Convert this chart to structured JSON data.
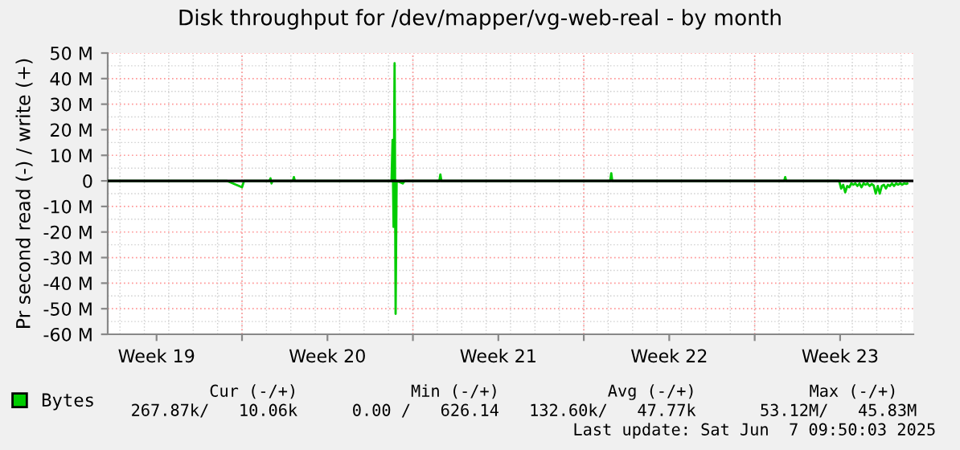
{
  "chart_data": {
    "type": "line",
    "title": "Disk throughput for /dev/mapper/vg-web-real - by month",
    "ylabel": "Pr second read (-) / write (+)",
    "x": [
      "2025-05-06T12:00",
      "2025-05-11T09:00",
      "2025-05-12T00:00",
      "2025-05-12T02:00",
      "2025-05-13T03:00",
      "2025-05-13T04:00",
      "2025-05-13T05:00",
      "2025-05-13T06:00",
      "2025-05-14T02:00",
      "2025-05-14T03:00",
      "2025-05-14T04:00",
      "2025-05-18T03:00",
      "2025-05-18T04:00",
      "2025-05-18T05:00",
      "2025-05-18T06:00",
      "2025-05-18T07:00",
      "2025-05-18T08:00",
      "2025-05-18T14:00",
      "2025-05-18T16:00",
      "2025-05-20T02:00",
      "2025-05-20T03:00",
      "2025-05-20T04:00",
      "2025-05-27T02:00",
      "2025-05-27T03:00",
      "2025-05-27T04:00",
      "2025-06-03T05:00",
      "2025-06-03T06:00",
      "2025-06-03T07:00",
      "2025-06-05T11:00",
      "2025-06-05T13:00",
      "2025-06-05T15:00",
      "2025-06-05T17:00",
      "2025-06-05T19:00",
      "2025-06-05T21:00",
      "2025-06-05T23:00",
      "2025-06-06T01:00",
      "2025-06-06T03:00",
      "2025-06-06T05:00",
      "2025-06-06T07:00",
      "2025-06-06T09:00",
      "2025-06-06T11:00",
      "2025-06-06T13:00",
      "2025-06-06T15:00",
      "2025-06-06T17:00",
      "2025-06-06T19:00",
      "2025-06-06T21:00",
      "2025-06-06T23:00",
      "2025-06-07T01:00",
      "2025-06-07T03:00",
      "2025-06-07T05:00",
      "2025-06-07T07:00",
      "2025-06-07T09:00",
      "2025-06-07T11:00",
      "2025-06-07T13:00",
      "2025-06-07T15:00",
      "2025-06-07T17:00",
      "2025-06-07T19:00",
      "2025-06-07T21:00",
      "2025-06-07T23:00",
      "2025-06-08T01:00",
      "2025-06-08T03:00",
      "2025-06-08T05:00",
      "2025-06-08T06:00"
    ],
    "series": [
      {
        "name": "Bytes",
        "color": "#00cc00",
        "values": [
          0,
          0,
          -2.5,
          0,
          0,
          1,
          -1,
          0,
          0,
          1.5,
          0,
          0,
          16,
          -18,
          46,
          -52,
          0,
          -1,
          0,
          0,
          2.5,
          0,
          0,
          3,
          0,
          0,
          1.5,
          0,
          0,
          -3,
          -1.5,
          -4.5,
          -2,
          -2.5,
          -1,
          -1.5,
          -1,
          -2,
          -1,
          -2.5,
          -1,
          -1.5,
          -1,
          -2,
          -1.2,
          -1.8,
          -5,
          -2,
          -5,
          -2,
          -1.5,
          -3,
          -1.5,
          -2,
          -1,
          -2,
          -1,
          -1.5,
          -1,
          -1.5,
          -1,
          -1.2,
          -1
        ]
      }
    ],
    "xlim": [
      "2025-05-06T12:00",
      "2025-06-08T12:00"
    ],
    "xticks": [
      {
        "value": "2025-05-08T12:00",
        "label": "Week 19"
      },
      {
        "value": "2025-05-12T00:00",
        "label": null
      },
      {
        "value": "2025-05-15T12:00",
        "label": "Week 20"
      },
      {
        "value": "2025-05-19T00:00",
        "label": null
      },
      {
        "value": "2025-05-22T12:00",
        "label": "Week 21"
      },
      {
        "value": "2025-05-26T00:00",
        "label": null
      },
      {
        "value": "2025-05-29T12:00",
        "label": "Week 22"
      },
      {
        "value": "2025-06-02T00:00",
        "label": null
      },
      {
        "value": "2025-06-05T12:00",
        "label": "Week 23"
      }
    ],
    "ylim": [
      -60,
      50
    ],
    "yticks": [
      {
        "value": -60,
        "label": "-60 M"
      },
      {
        "value": -50,
        "label": "-50 M"
      },
      {
        "value": -40,
        "label": "-40 M"
      },
      {
        "value": -30,
        "label": "-30 M"
      },
      {
        "value": -20,
        "label": "-20 M"
      },
      {
        "value": -10,
        "label": "-10 M"
      },
      0,
      {
        "value": 10,
        "label": "10 M"
      },
      {
        "value": 20,
        "label": "20 M"
      },
      {
        "value": 30,
        "label": "30 M"
      },
      {
        "value": 40,
        "label": "40 M"
      },
      {
        "value": 50,
        "label": "50 M"
      }
    ],
    "ref_lines": [
      {
        "axis": "y",
        "value": 0,
        "color": "#000000"
      }
    ],
    "grid": true,
    "legend": "bottom",
    "line_style": "solid",
    "marker": "none",
    "annotations": [
      "Cur (-/+)",
      "Min (-/+)",
      "Avg (-/+)",
      "Max (-/+)",
      "267.87k/   10.06k",
      "0.00 /   626.14",
      "132.60k/   47.77k",
      "53.12M/   45.83M",
      "Last update: Sat Jun  7 09:50:03 2025"
    ]
  }
}
